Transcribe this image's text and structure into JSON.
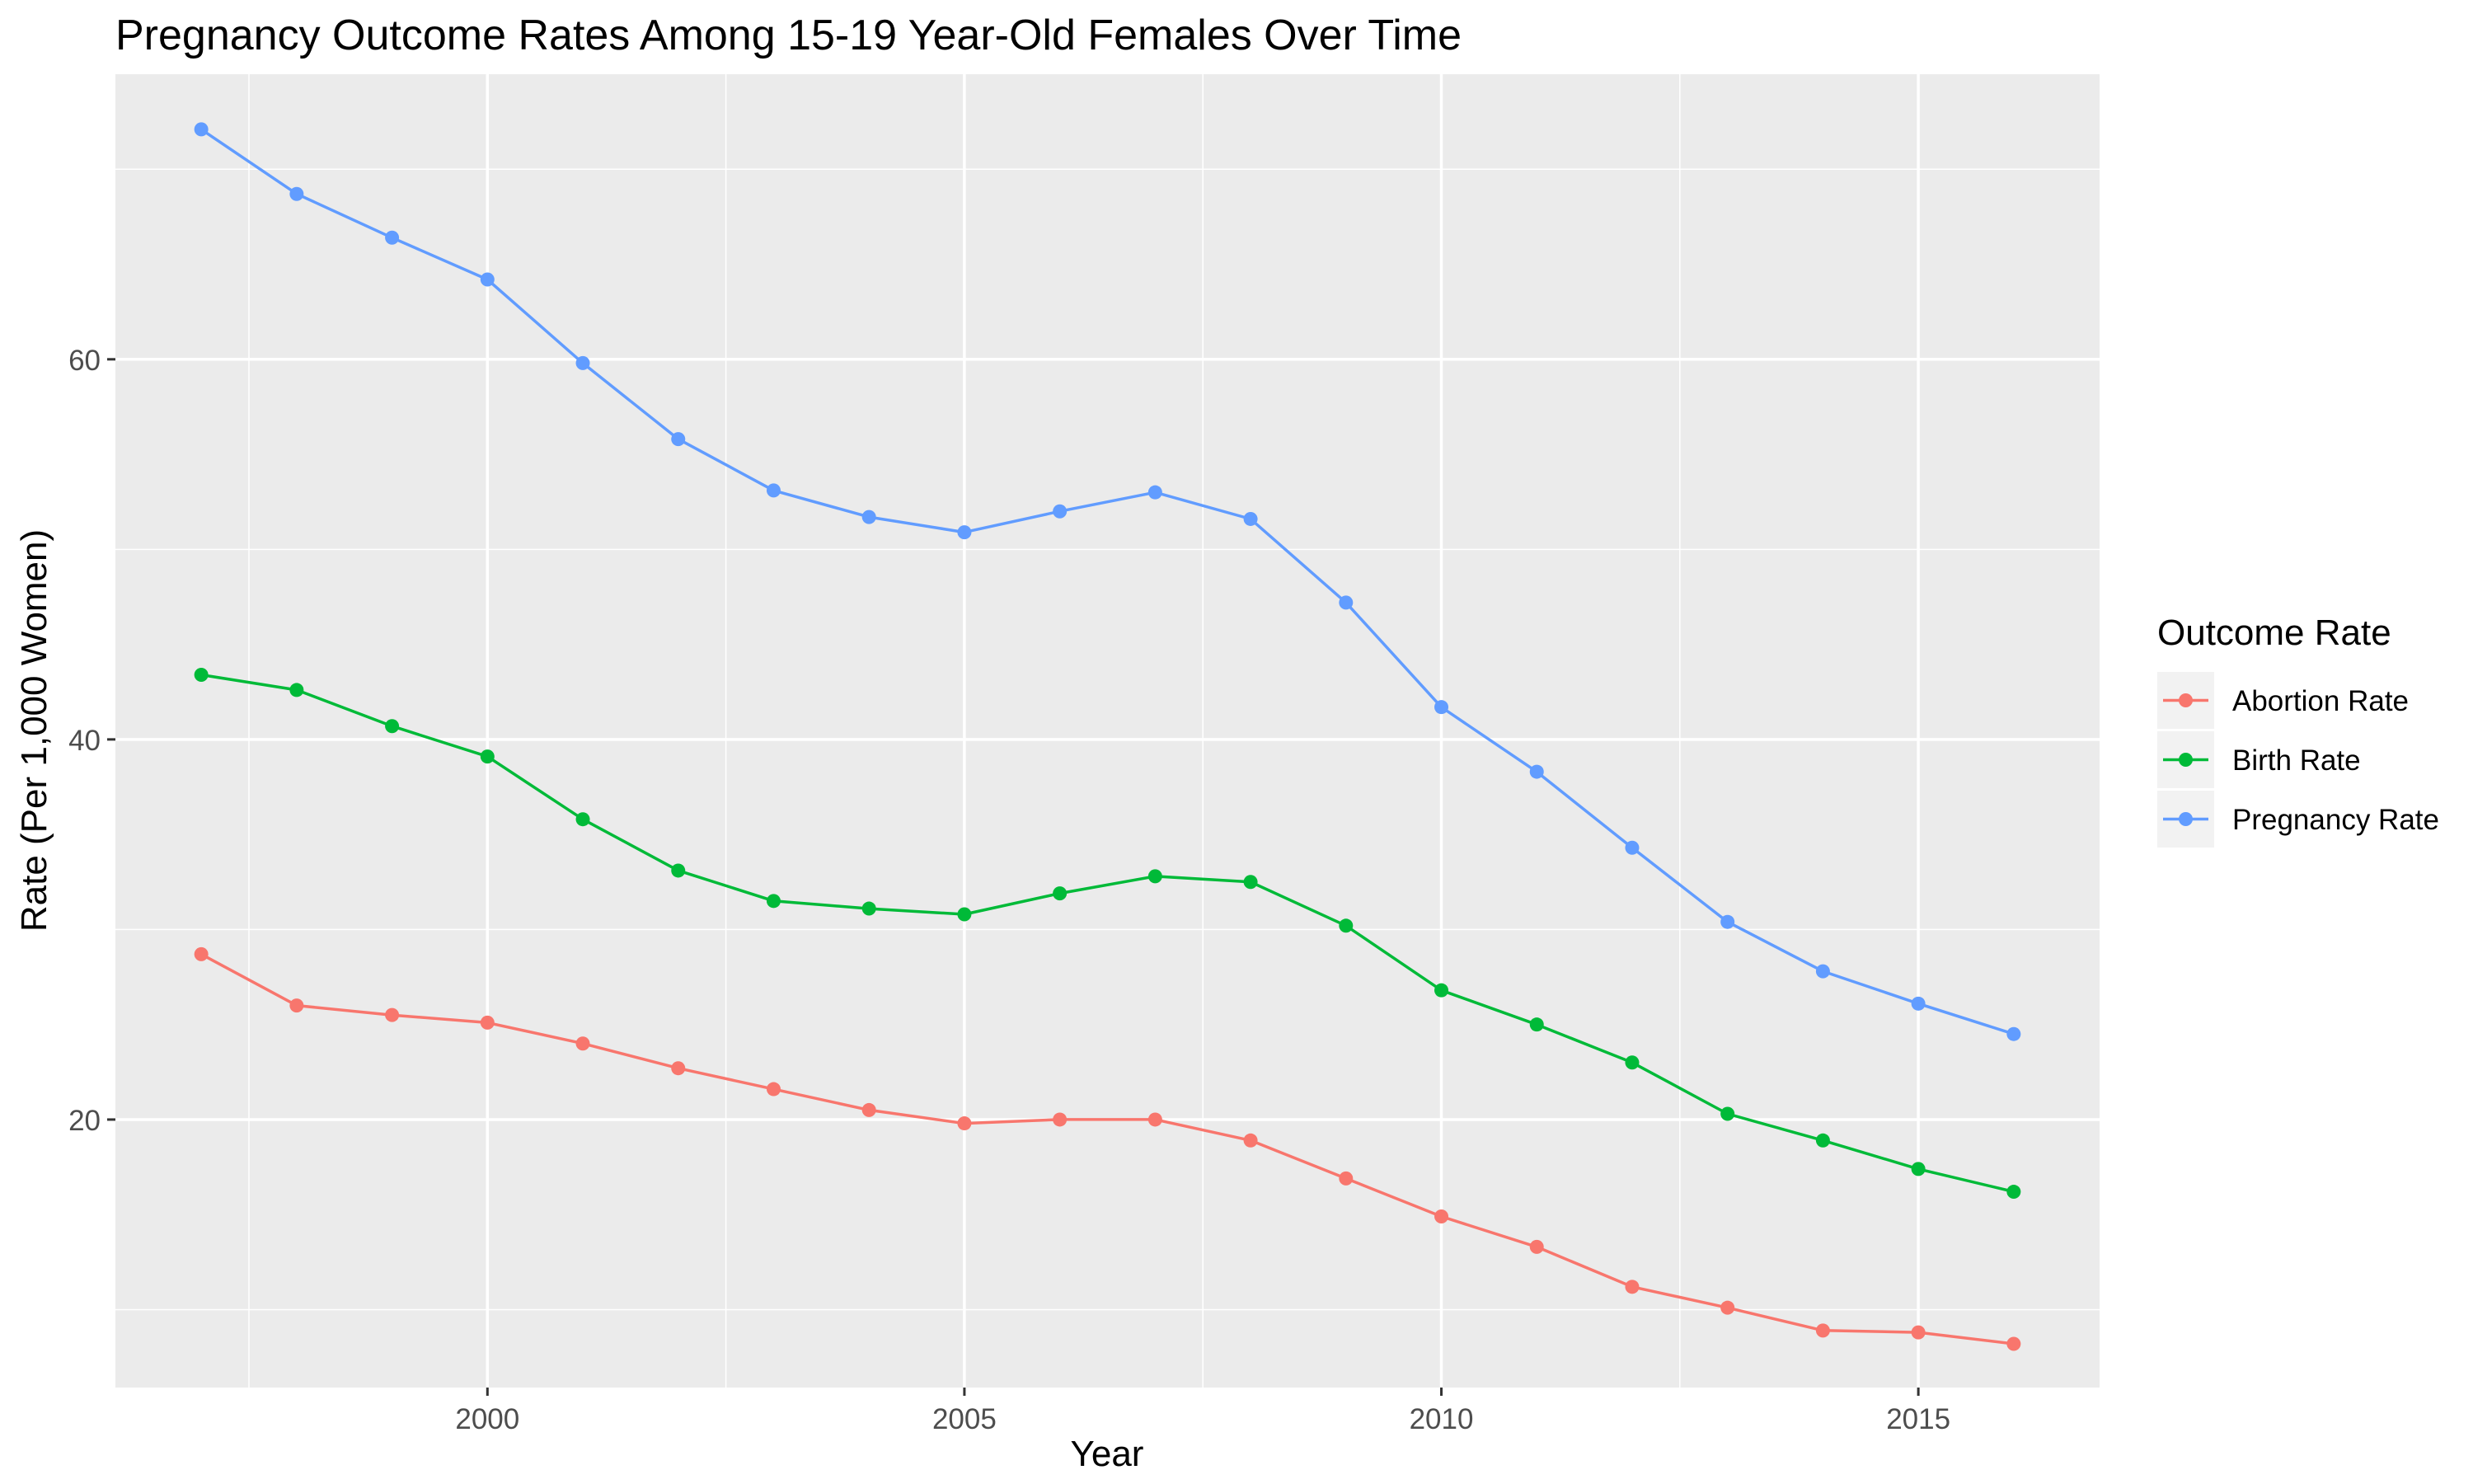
{
  "chart_data": {
    "type": "line",
    "title": "Pregnancy Outcome Rates Among 15-19 Year-Old Females Over Time",
    "xlabel": "Year",
    "ylabel": "Rate (Per 1,000 Women)",
    "xlim": [
      1996.1,
      2016.9
    ],
    "ylim": [
      5.9,
      75.0
    ],
    "x_ticks": [
      2000,
      2005,
      2010,
      2015
    ],
    "x_minor_ticks": [
      1997.5,
      2002.5,
      2007.5,
      2012.5
    ],
    "y_ticks": [
      20,
      40,
      60
    ],
    "y_minor_ticks": [
      10,
      30,
      50,
      70
    ],
    "grid": true,
    "legend": {
      "title": "Outcome Rate",
      "position": "right"
    },
    "x": [
      1997,
      1998,
      1999,
      2000,
      2001,
      2002,
      2003,
      2004,
      2005,
      2006,
      2007,
      2008,
      2009,
      2010,
      2011,
      2012,
      2013,
      2014,
      2015,
      2016
    ],
    "series": [
      {
        "name": "Abortion Rate",
        "color": "#F8766D",
        "values": [
          28.7,
          26.0,
          25.5,
          25.1,
          24.0,
          22.7,
          21.6,
          20.5,
          19.8,
          20.0,
          20.0,
          18.9,
          16.9,
          14.9,
          13.3,
          11.2,
          10.1,
          8.9,
          8.8,
          8.2
        ]
      },
      {
        "name": "Birth Rate",
        "color": "#00BA38",
        "values": [
          43.4,
          42.6,
          40.7,
          39.1,
          35.8,
          33.1,
          31.5,
          31.1,
          30.8,
          31.9,
          32.8,
          32.5,
          30.2,
          26.8,
          25.0,
          23.0,
          20.3,
          18.9,
          17.4,
          16.2
        ]
      },
      {
        "name": "Pregnancy Rate",
        "color": "#619CFF",
        "values": [
          72.1,
          68.7,
          66.4,
          64.2,
          59.8,
          55.8,
          53.1,
          51.7,
          50.9,
          52.0,
          53.0,
          51.6,
          47.2,
          41.7,
          38.3,
          34.3,
          30.4,
          27.8,
          26.1,
          24.5
        ]
      }
    ]
  }
}
